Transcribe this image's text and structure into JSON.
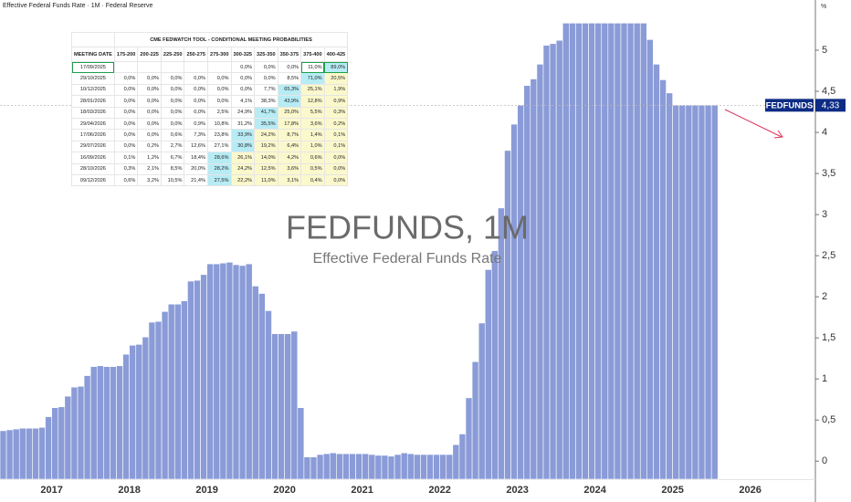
{
  "header": {
    "title": "Effective Federal Funds Rate · 1M · Federal Reserve",
    "unit": "%"
  },
  "chart_data": {
    "type": "bar",
    "title": "FEDFUNDS, 1M",
    "subtitle": "Effective Federal Funds Rate",
    "categories": [
      null,
      null,
      null,
      null,
      null,
      null,
      null,
      null,
      "2017",
      null,
      null,
      null,
      null,
      null,
      null,
      null,
      null,
      null,
      null,
      null,
      "2018",
      null,
      null,
      null,
      null,
      null,
      null,
      null,
      null,
      null,
      null,
      null,
      "2019",
      null,
      null,
      null,
      null,
      null,
      null,
      null,
      null,
      null,
      null,
      null,
      "2020",
      null,
      null,
      null,
      null,
      null,
      null,
      null,
      null,
      null,
      null,
      null,
      "2021",
      null,
      null,
      null,
      null,
      null,
      null,
      null,
      null,
      null,
      null,
      null,
      "2022",
      null,
      null,
      null,
      null,
      null,
      null,
      null,
      null,
      null,
      null,
      null,
      "2023",
      null,
      null,
      null,
      null,
      null,
      null,
      null,
      null,
      null,
      null,
      null,
      "2024",
      null,
      null,
      null,
      null,
      null,
      null,
      null,
      null,
      null,
      null,
      null,
      "2025",
      null,
      null,
      null,
      null,
      null,
      null,
      null,
      null,
      null,
      null,
      null,
      "2026"
    ],
    "values": [
      0.37,
      0.38,
      0.39,
      0.4,
      0.4,
      0.4,
      0.41,
      0.54,
      0.65,
      0.66,
      0.79,
      0.9,
      0.91,
      1.04,
      1.15,
      1.16,
      1.15,
      1.15,
      1.16,
      1.3,
      1.41,
      1.42,
      1.51,
      1.69,
      1.7,
      1.82,
      1.91,
      1.91,
      1.95,
      2.19,
      2.2,
      2.27,
      2.4,
      2.4,
      2.41,
      2.42,
      2.39,
      2.38,
      2.4,
      2.13,
      2.04,
      1.83,
      1.55,
      1.55,
      1.55,
      1.58,
      0.65,
      0.05,
      0.05,
      0.08,
      0.09,
      0.1,
      0.09,
      0.09,
      0.09,
      0.09,
      0.09,
      0.08,
      0.07,
      0.07,
      0.06,
      0.08,
      0.1,
      0.09,
      0.08,
      0.08,
      0.08,
      0.08,
      0.08,
      0.08,
      0.2,
      0.33,
      0.77,
      1.21,
      1.68,
      2.33,
      2.56,
      3.08,
      3.78,
      4.1,
      4.33,
      4.57,
      4.65,
      4.83,
      5.06,
      5.08,
      5.12,
      5.33,
      5.33,
      5.33,
      5.33,
      5.33,
      5.33,
      5.33,
      5.33,
      5.33,
      5.33,
      5.33,
      5.33,
      5.33,
      5.13,
      4.83,
      4.64,
      4.48,
      4.33,
      4.33,
      4.33,
      4.33,
      4.33,
      4.33,
      4.33,
      null,
      null,
      null,
      null,
      null,
      null
    ],
    "color": "#8a9bd8",
    "ylim": [
      -0.22,
      5.6
    ],
    "yticks": [
      0,
      {
        "value": 0.5,
        "label": "0,5"
      },
      1,
      {
        "value": 1.5,
        "label": "1,5"
      },
      2,
      {
        "value": 2.5,
        "label": "2,5"
      },
      3,
      {
        "value": 3.5,
        "label": "3,5"
      },
      4,
      {
        "value": 4.5,
        "label": "4,5"
      },
      5
    ],
    "last_label": {
      "name": "FEDFUNDS",
      "value": 4.33,
      "label": "4,33"
    }
  },
  "table": {
    "title": "CME FEDWATCH TOOL - CONDITIONAL MEETING PROBABILITIES",
    "columns": [
      "MEETING DATE",
      "175-200",
      "200-225",
      "225-250",
      "250-275",
      "275-300",
      "300-325",
      "325-350",
      "350-375",
      "375-400",
      "400-425"
    ],
    "rows": [
      [
        "17/09/2025",
        null,
        null,
        null,
        null,
        null,
        "0,0%",
        "0,0%",
        "0,0%",
        "11,0%",
        "89,0%"
      ],
      [
        "29/10/2025",
        "0,0%",
        "0,0%",
        "0,0%",
        "0,0%",
        "0,0%",
        "0,0%",
        "0,0%",
        "8,5%",
        "71,0%",
        "20,5%"
      ],
      [
        "10/12/2025",
        "0,0%",
        "0,0%",
        "0,0%",
        "0,0%",
        "0,0%",
        "0,0%",
        "7,7%",
        "65,3%",
        "25,1%",
        "1,9%"
      ],
      [
        "28/01/2026",
        "0,0%",
        "0,0%",
        "0,0%",
        "0,0%",
        "0,0%",
        "4,1%",
        "38,3%",
        "43,9%",
        "12,8%",
        "0,9%"
      ],
      [
        "18/03/2026",
        "0,0%",
        "0,0%",
        "0,0%",
        "0,0%",
        "2,5%",
        "24,9%",
        "41,7%",
        "25,0%",
        "5,5%",
        "0,3%"
      ],
      [
        "29/04/2026",
        "0,0%",
        "0,0%",
        "0,0%",
        "0,9%",
        "10,8%",
        "31,2%",
        "35,5%",
        "17,8%",
        "3,6%",
        "0,2%"
      ],
      [
        "17/06/2026",
        "0,0%",
        "0,0%",
        "0,6%",
        "7,3%",
        "23,8%",
        "33,9%",
        "24,2%",
        "8,7%",
        "1,4%",
        "0,1%"
      ],
      [
        "29/07/2026",
        "0,0%",
        "0,2%",
        "2,7%",
        "12,6%",
        "27,1%",
        "30,8%",
        "19,2%",
        "6,4%",
        "1,0%",
        "0,1%"
      ],
      [
        "16/09/2026",
        "0,1%",
        "1,2%",
        "6,7%",
        "18,4%",
        "28,6%",
        "26,1%",
        "14,0%",
        "4,2%",
        "0,6%",
        "0,0%"
      ],
      [
        "28/10/2026",
        "0,3%",
        "2,1%",
        "8,5%",
        "20,0%",
        "28,2%",
        "24,2%",
        "12,5%",
        "3,6%",
        "0,5%",
        "0,0%"
      ],
      [
        "09/12/2026",
        "0,6%",
        "3,2%",
        "10,5%",
        "21,4%",
        "27,5%",
        "22,2%",
        "11,0%",
        "3,1%",
        "0,4%",
        "0,0%"
      ]
    ]
  }
}
